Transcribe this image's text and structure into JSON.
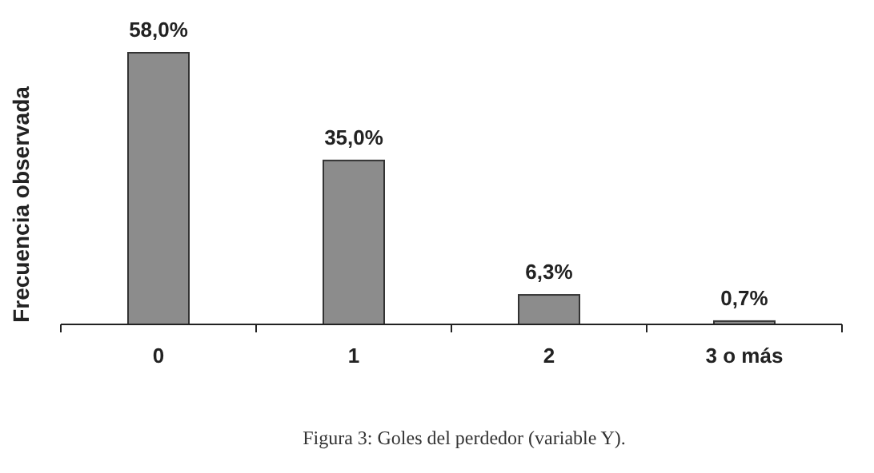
{
  "chart_data": {
    "type": "bar",
    "ylabel": "Frecuencia observada",
    "categories": [
      "0",
      "1",
      "2",
      "3 o más"
    ],
    "values": [
      58.0,
      35.0,
      6.3,
      0.7
    ],
    "value_labels": [
      "58,0%",
      "35,0%",
      "6,3%",
      "0,7%"
    ],
    "color": "#8c8c8c",
    "annotations": [
      "Figura 3: Goles del perdedor (variable Y)."
    ]
  }
}
